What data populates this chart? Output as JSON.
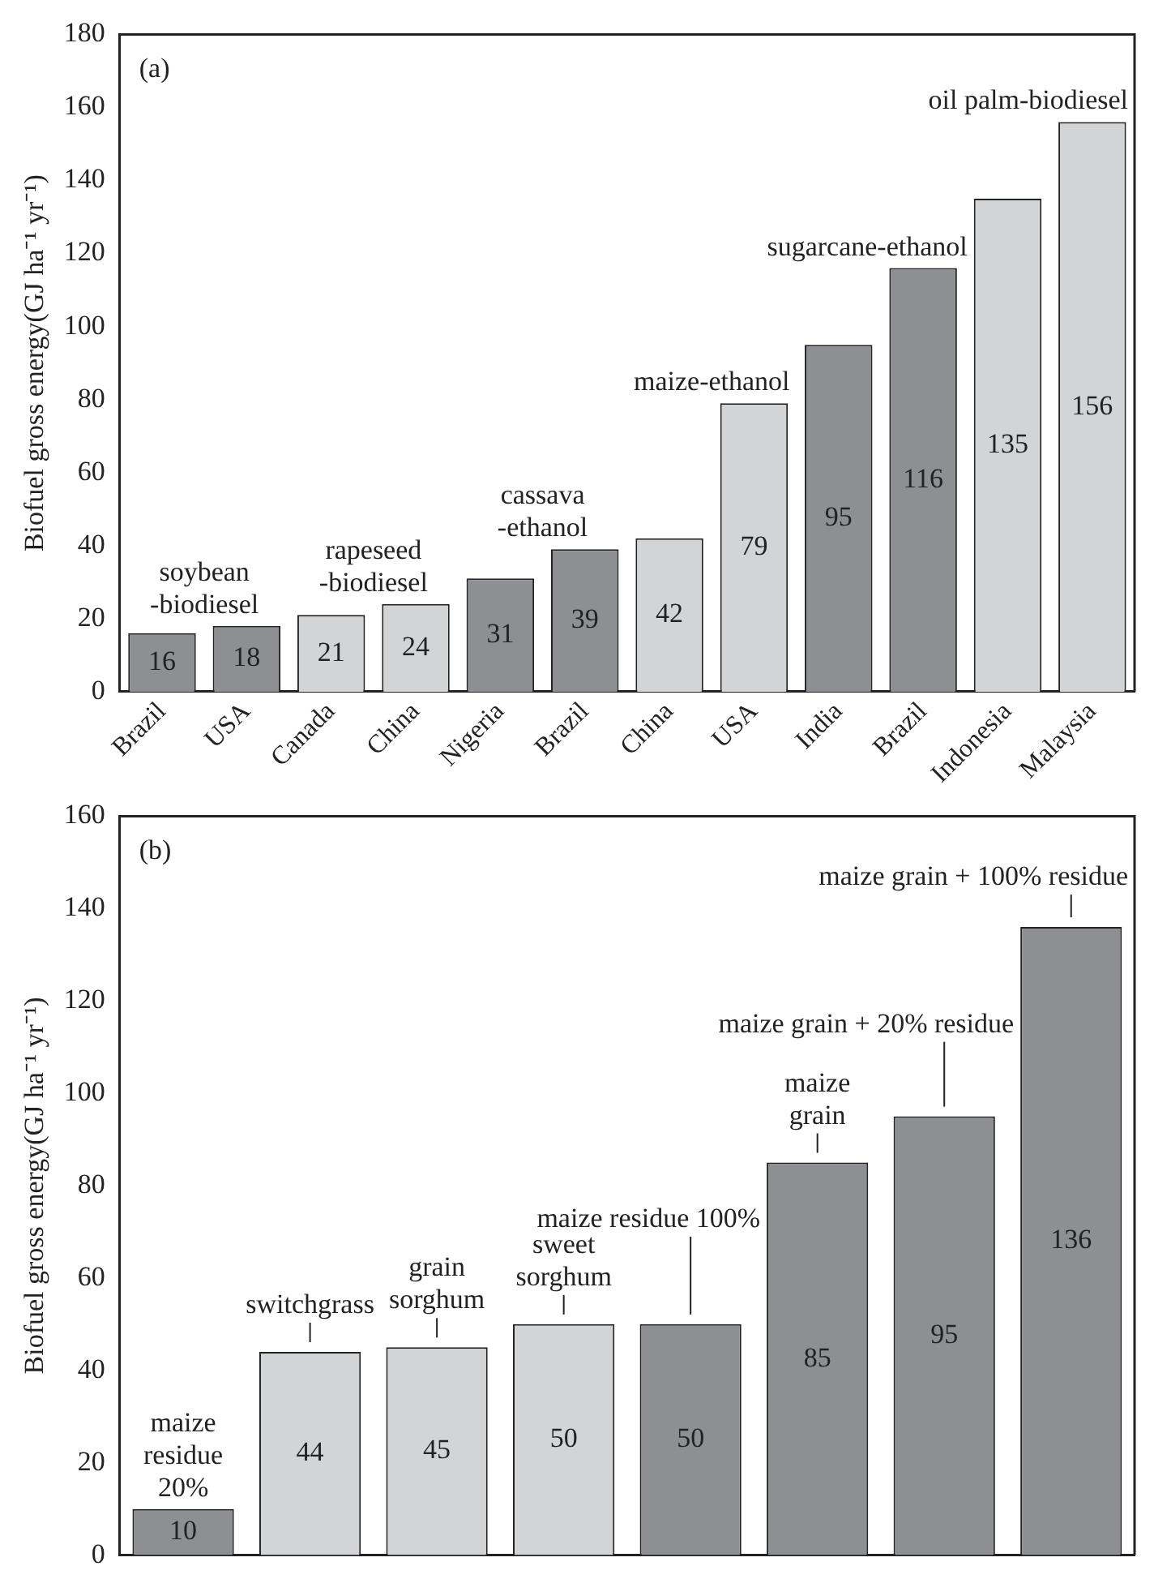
{
  "chart_data": [
    {
      "type": "bar",
      "title": "(a)",
      "ylabel": "Biofuel gross energy(GJ ha⁻¹ yr⁻¹)",
      "categories": [
        "Brazil",
        "USA",
        "Canada",
        "China",
        "Nigeria",
        "Brazil",
        "China",
        "USA",
        "India",
        "Brazil",
        "Indonesia",
        "Malaysia"
      ],
      "values": [
        16,
        18,
        21,
        24,
        31,
        39,
        42,
        79,
        95,
        116,
        135,
        156
      ],
      "colors": [
        "#8e8f93",
        "#8e8f93",
        "#d3d4d6",
        "#d3d4d6",
        "#8e8f93",
        "#8e8f93",
        "#d3d4d6",
        "#d3d4d6",
        "#8e8f93",
        "#8e8f93",
        "#d3d4d6",
        "#d3d4d6"
      ],
      "ylim": [
        0,
        180
      ],
      "yticks": [
        0,
        20,
        40,
        60,
        80,
        100,
        120,
        140,
        160,
        180
      ],
      "data_labels": true,
      "annotations": [
        "soybean\n-biodiesel",
        "rapeseed\n-biodiesel",
        "cassava\n-ethanol",
        "maize-ethanol",
        "sugarcane-ethanol",
        "oil palm-biodiesel"
      ]
    },
    {
      "type": "bar",
      "title": "(b)",
      "ylabel": "Biofuel gross energy(GJ ha⁻¹ yr⁻¹)",
      "categories": [
        null,
        null,
        null,
        null,
        null,
        null,
        null,
        null
      ],
      "values": [
        10,
        44,
        45,
        50,
        50,
        85,
        95,
        136
      ],
      "colors": [
        "#8e8f93",
        "#d3d4d6",
        "#d3d4d6",
        "#d3d4d6",
        "#8e8f93",
        "#8e8f93",
        "#8e8f93",
        "#8e8f93"
      ],
      "ylim": [
        0,
        160
      ],
      "yticks": [
        0,
        20,
        40,
        60,
        80,
        100,
        120,
        140,
        160
      ],
      "data_labels": true,
      "tick_labels": "y",
      "annotations": [
        "maize\nresidue\n20%",
        "switchgrass",
        "grain\nsorghum",
        "sweet\nsorghum",
        "maize residue 100%",
        "maize\ngrain",
        "maize grain + 20% residue",
        "maize grain + 100% residue"
      ]
    }
  ]
}
